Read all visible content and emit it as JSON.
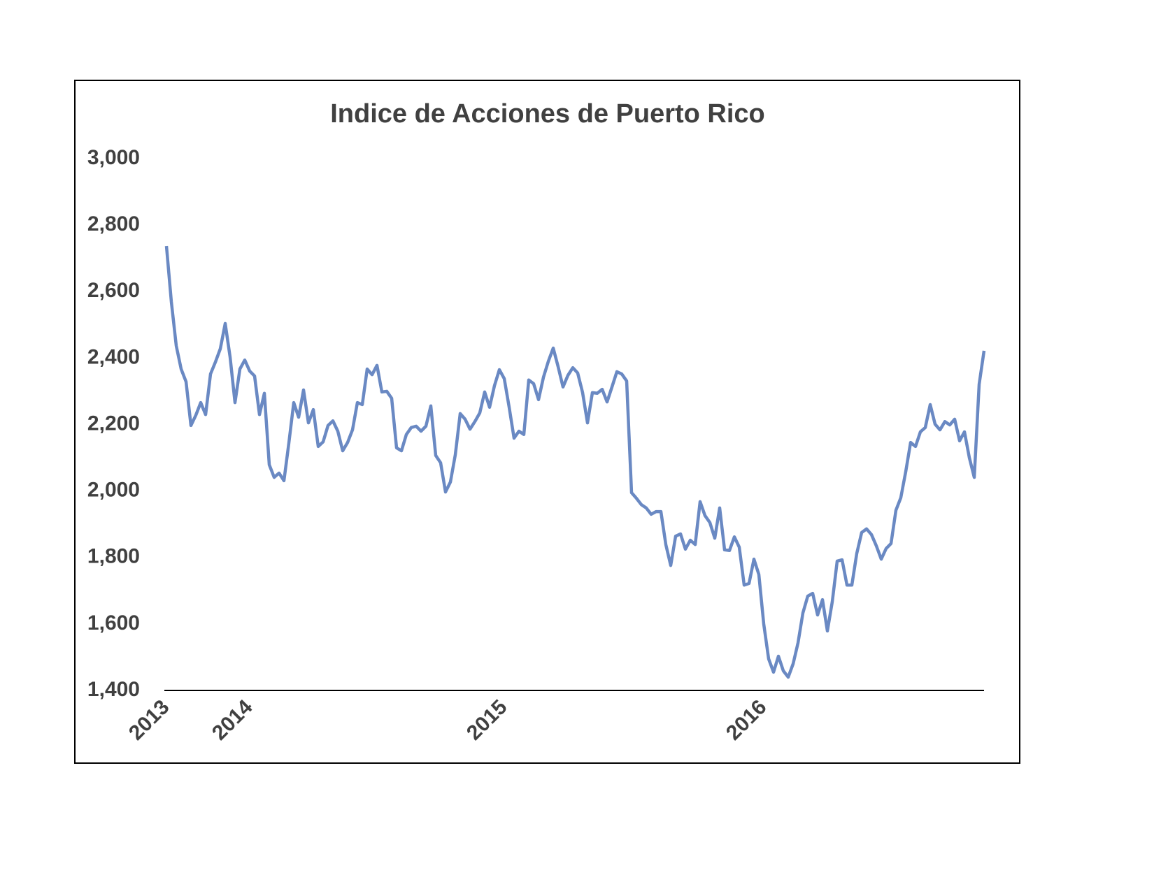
{
  "chart_data": {
    "type": "line",
    "title": "Indice de Acciones de Puerto Rico",
    "categories": [
      "2013",
      null,
      null,
      null,
      null,
      null,
      null,
      null,
      null,
      null,
      null,
      null,
      null,
      null,
      null,
      null,
      null,
      "2014",
      null,
      null,
      null,
      null,
      null,
      null,
      null,
      null,
      null,
      null,
      null,
      null,
      null,
      null,
      null,
      null,
      null,
      null,
      null,
      null,
      null,
      null,
      null,
      null,
      null,
      null,
      null,
      null,
      null,
      null,
      null,
      null,
      null,
      null,
      null,
      null,
      null,
      null,
      null,
      null,
      null,
      null,
      null,
      null,
      null,
      null,
      null,
      null,
      null,
      null,
      null,
      "2015",
      null,
      null,
      null,
      null,
      null,
      null,
      null,
      null,
      null,
      null,
      null,
      null,
      null,
      null,
      null,
      null,
      null,
      null,
      null,
      null,
      null,
      null,
      null,
      null,
      null,
      null,
      null,
      null,
      null,
      null,
      null,
      null,
      null,
      null,
      null,
      null,
      null,
      null,
      null,
      null,
      null,
      null,
      null,
      null,
      null,
      null,
      null,
      null,
      null,
      null,
      null,
      null,
      "2016",
      null,
      null,
      null,
      null,
      null,
      null,
      null,
      null,
      null,
      null,
      null,
      null,
      null,
      null,
      null,
      null,
      null,
      null,
      null,
      null,
      null,
      null,
      null,
      null,
      null,
      null,
      null,
      null,
      null,
      null,
      null,
      null,
      null,
      null,
      null,
      null,
      null,
      null,
      null,
      null,
      null,
      null,
      null,
      null,
      null
    ],
    "series": [
      {
        "color": "#6a89c3",
        "values": [
          2737,
          2569,
          2437,
          2367,
          2329,
          2197,
          2228,
          2266,
          2230,
          2352,
          2388,
          2428,
          2504,
          2403,
          2266,
          2367,
          2394,
          2361,
          2346,
          2230,
          2294,
          2079,
          2041,
          2054,
          2031,
          2144,
          2266,
          2222,
          2304,
          2205,
          2245,
          2134,
          2148,
          2197,
          2211,
          2180,
          2121,
          2146,
          2184,
          2266,
          2260,
          2367,
          2350,
          2378,
          2298,
          2300,
          2279,
          2130,
          2121,
          2170,
          2191,
          2195,
          2180,
          2195,
          2256,
          2107,
          2085,
          1997,
          2027,
          2109,
          2233,
          2216,
          2186,
          2209,
          2235,
          2298,
          2252,
          2317,
          2365,
          2338,
          2252,
          2159,
          2180,
          2170,
          2334,
          2323,
          2275,
          2342,
          2390,
          2430,
          2374,
          2313,
          2348,
          2371,
          2355,
          2296,
          2205,
          2296,
          2294,
          2306,
          2268,
          2313,
          2359,
          2352,
          2331,
          1995,
          1978,
          1959,
          1949,
          1930,
          1938,
          1938,
          1839,
          1776,
          1864,
          1871,
          1825,
          1852,
          1839,
          1968,
          1926,
          1905,
          1858,
          1949,
          1823,
          1821,
          1862,
          1831,
          1717,
          1722,
          1795,
          1749,
          1600,
          1495,
          1455,
          1503,
          1459,
          1440,
          1480,
          1543,
          1633,
          1684,
          1692,
          1627,
          1673,
          1579,
          1667,
          1789,
          1793,
          1717,
          1717,
          1812,
          1875,
          1886,
          1869,
          1835,
          1795,
          1827,
          1842,
          1942,
          1980,
          2058,
          2146,
          2134,
          2178,
          2191,
          2260,
          2201,
          2184,
          2209,
          2199,
          2216,
          2151,
          2178,
          2100,
          2041,
          2321,
          2422
        ]
      }
    ],
    "ylim": [
      1400,
      3000
    ],
    "yticks": [
      {
        "value": 1400,
        "label": "1,400"
      },
      {
        "value": 1600,
        "label": "1,600"
      },
      {
        "value": 1800,
        "label": "1,800"
      },
      {
        "value": 2000,
        "label": "2,000"
      },
      {
        "value": 2200,
        "label": "2,200"
      },
      {
        "value": 2400,
        "label": "2,400"
      },
      {
        "value": 2600,
        "label": "2,600"
      },
      {
        "value": 2800,
        "label": "2,800"
      },
      {
        "value": 3000,
        "label": "3,000"
      }
    ],
    "grid": false
  }
}
